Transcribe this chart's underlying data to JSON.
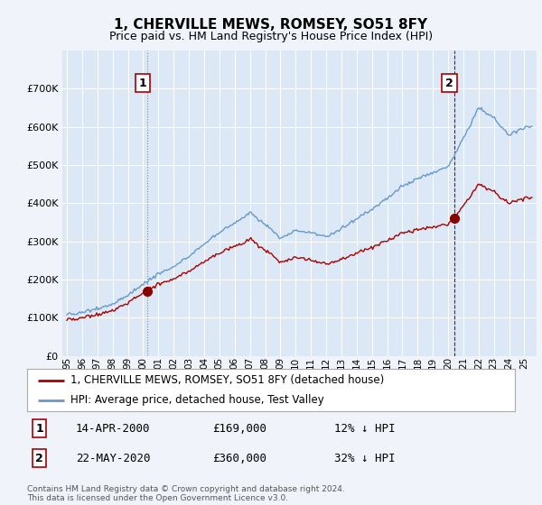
{
  "title": "1, CHERVILLE MEWS, ROMSEY, SO51 8FY",
  "subtitle": "Price paid vs. HM Land Registry's House Price Index (HPI)",
  "red_label": "1, CHERVILLE MEWS, ROMSEY, SO51 8FY (detached house)",
  "blue_label": "HPI: Average price, detached house, Test Valley",
  "sale1_date": "14-APR-2000",
  "sale1_price": 169000,
  "sale1_info": "12% ↓ HPI",
  "sale2_date": "22-MAY-2020",
  "sale2_price": 360000,
  "sale2_info": "32% ↓ HPI",
  "footer": "Contains HM Land Registry data © Crown copyright and database right 2024.\nThis data is licensed under the Open Government Licence v3.0.",
  "ylim": [
    0,
    800000
  ],
  "yticks": [
    0,
    100000,
    200000,
    300000,
    400000,
    500000,
    600000,
    700000
  ],
  "plot_bg_color": "#dce8f5",
  "fig_bg_color": "#f0f4fa",
  "red_color": "#aa0000",
  "blue_color": "#6699cc",
  "sale1_year": 2000.29,
  "sale2_year": 2020.38,
  "hpi_key_years": [
    1995,
    1996,
    1997,
    1998,
    1999,
    2000,
    2001,
    2002,
    2003,
    2004,
    2005,
    2006,
    2007,
    2008,
    2009,
    2010,
    2011,
    2012,
    2013,
    2014,
    2015,
    2016,
    2017,
    2018,
    2019,
    2020,
    2021,
    2022,
    2023,
    2024,
    2025
  ],
  "hpi_key_vals": [
    110000,
    115000,
    125000,
    140000,
    160000,
    190000,
    215000,
    235000,
    260000,
    295000,
    320000,
    345000,
    375000,
    345000,
    310000,
    330000,
    325000,
    315000,
    335000,
    360000,
    385000,
    415000,
    445000,
    465000,
    480000,
    495000,
    570000,
    650000,
    625000,
    580000,
    600000
  ],
  "sale1_hpi_ratio": 0.88,
  "sale2_hpi_ratio": 0.68
}
